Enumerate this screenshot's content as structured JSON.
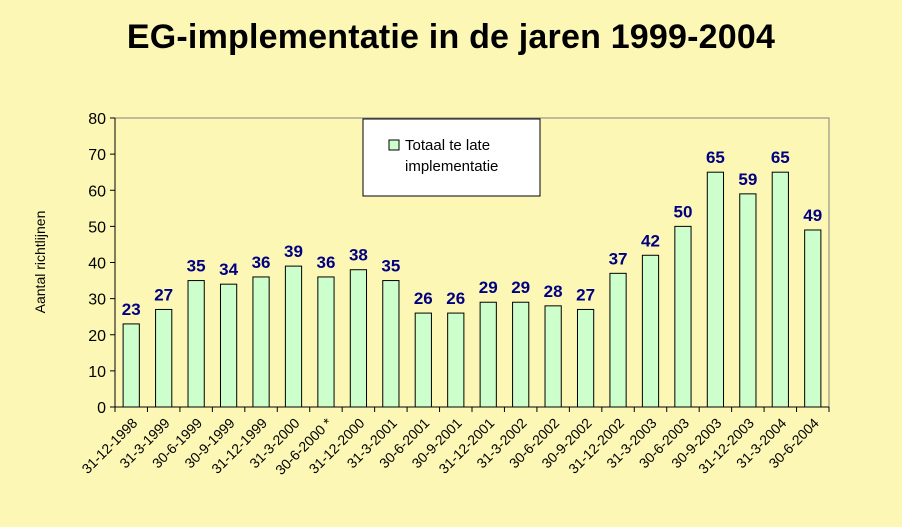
{
  "chart_data": {
    "type": "bar",
    "title": "EG-implementatie in de jaren 1999-2004",
    "ylabel": "Aantal richtlijnen",
    "xlabel": "",
    "ylim": [
      0,
      80
    ],
    "yticks": [
      0,
      10,
      20,
      30,
      40,
      50,
      60,
      70,
      80
    ],
    "grid": false,
    "legend_position": "top-center",
    "categories": [
      "31-12-1998",
      "31-3-1999",
      "30-6-1999",
      "30-9-1999",
      "31-12-1999",
      "31-3-2000",
      "30-6-2000 *",
      "31-12-2000",
      "31-3-2001",
      "30-6-2001",
      "30-9-2001",
      "31-12-2001",
      "31-3-2002",
      "30-6-2002",
      "30-9-2002",
      "31-12-2002",
      "31-3-2003",
      "30-6-2003",
      "30-9-2003",
      "31-12-2003",
      "31-3-2004",
      "30-6-2004"
    ],
    "series": [
      {
        "name": "Totaal te late implementatie",
        "legend_lines": [
          "Totaal te late",
          "implementatie"
        ],
        "color": "#ccffcc",
        "values": [
          23,
          27,
          35,
          34,
          36,
          39,
          36,
          38,
          35,
          26,
          26,
          29,
          29,
          28,
          27,
          37,
          42,
          50,
          65,
          59,
          65,
          49
        ]
      }
    ],
    "colors": {
      "background": "#fdf7b6",
      "plot_area": "#fdf7b6",
      "bar_fill": "#ccffcc",
      "bar_stroke": "#000000",
      "data_label": "#000080",
      "axis": "#000000"
    }
  }
}
